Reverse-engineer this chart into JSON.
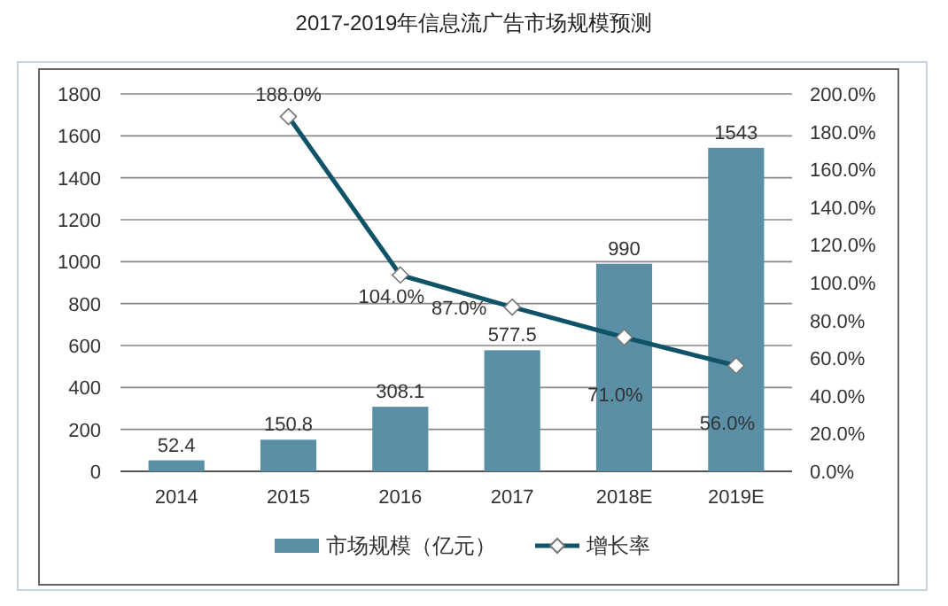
{
  "chart_data": {
    "type": "bar",
    "title": "2017-2019年信息流广告市场规模预测",
    "categories": [
      "2014",
      "2015",
      "2016",
      "2017",
      "2018E",
      "2019E"
    ],
    "series": [
      {
        "name": "市场规模（亿元）",
        "color": "#5b8fa6",
        "values": [
          52.4,
          150.8,
          308.1,
          577.5,
          990,
          1543
        ],
        "value_labels": [
          "52.4",
          "150.8",
          "308.1",
          "577.5",
          "990",
          "1543"
        ]
      },
      {
        "name": "增长率",
        "type": "line",
        "axis": "y2",
        "color": "#0e5368",
        "marker": "diamond",
        "values": [
          null,
          188.0,
          104.0,
          87.0,
          71.0,
          56.0
        ],
        "value_labels": [
          null,
          "188.0%",
          "104.0%",
          "87.0%",
          "71.0%",
          "56.0%"
        ]
      }
    ],
    "ylim": [
      0,
      1800
    ],
    "yticks": [
      0,
      200,
      400,
      600,
      800,
      1000,
      1200,
      1400,
      1600,
      1800
    ],
    "y2lim": [
      0,
      200
    ],
    "y2ticks": [
      {
        "value": 0,
        "label": "0.0%"
      },
      {
        "value": 20,
        "label": "20.0%"
      },
      {
        "value": 40,
        "label": "40.0%"
      },
      {
        "value": 60,
        "label": "60.0%"
      },
      {
        "value": 80,
        "label": "80.0%"
      },
      {
        "value": 100,
        "label": "100.0%"
      },
      {
        "value": 120,
        "label": "120.0%"
      },
      {
        "value": 140,
        "label": "140.0%"
      },
      {
        "value": 160,
        "label": "160.0%"
      },
      {
        "value": 180,
        "label": "180.0%"
      },
      {
        "value": 200,
        "label": "200.0%"
      }
    ],
    "grid": "y",
    "legend": "bottom"
  }
}
